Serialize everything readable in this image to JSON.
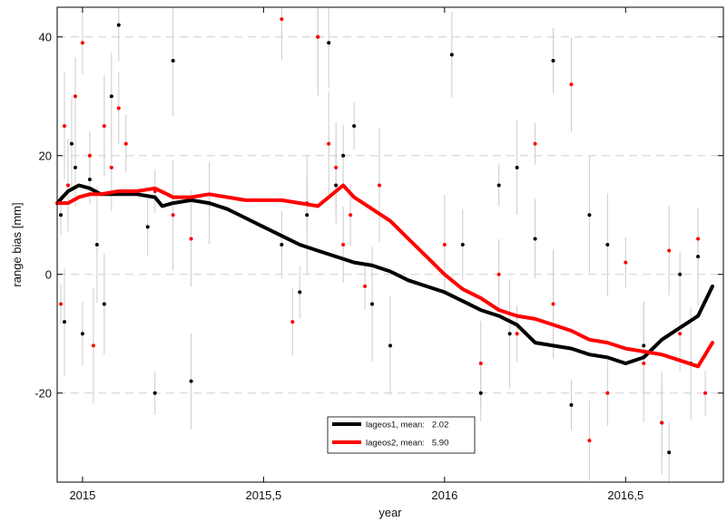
{
  "chart_data": {
    "type": "line",
    "title": "",
    "xlabel": "year",
    "ylabel": "range bias [mm]",
    "xlim": [
      2014.93,
      2016.77
    ],
    "ylim": [
      -35,
      45
    ],
    "x_ticks": [
      2015,
      2015.5,
      2016,
      2016.5
    ],
    "x_tick_labels": [
      "2015",
      "2015,5",
      "2016",
      "2016,5"
    ],
    "y_ticks": [
      -20,
      0,
      20,
      40
    ],
    "y_tick_labels": [
      "-20",
      "0",
      "20",
      "40"
    ],
    "grid": "horizontal dashed",
    "legend_position": "bottom-center",
    "colors": {
      "lageos1": "#000000",
      "lageos2": "#ff0000",
      "error_bars": "#cccccc",
      "grid": "#cfcfcf"
    },
    "series": [
      {
        "name": "lageos1, mean:   2.02",
        "color": "#000000",
        "x": [
          2014.93,
          2014.96,
          2014.99,
          2015.02,
          2015.05,
          2015.1,
          2015.15,
          2015.2,
          2015.22,
          2015.25,
          2015.3,
          2015.35,
          2015.4,
          2015.45,
          2015.5,
          2015.55,
          2015.6,
          2015.65,
          2015.7,
          2015.75,
          2015.8,
          2015.85,
          2015.9,
          2015.95,
          2016.0,
          2016.05,
          2016.1,
          2016.15,
          2016.2,
          2016.25,
          2016.3,
          2016.35,
          2016.4,
          2016.45,
          2016.5,
          2016.55,
          2016.6,
          2016.65,
          2016.7,
          2016.74
        ],
        "y": [
          12,
          14,
          15,
          14.5,
          13.5,
          13.5,
          13.5,
          13,
          11.5,
          12,
          12.5,
          12,
          11,
          9.5,
          8,
          6.5,
          5,
          4,
          3,
          2,
          1.5,
          0.5,
          -1,
          -2,
          -3,
          -4.5,
          -6,
          -7,
          -8.5,
          -11.5,
          -12,
          -12.5,
          -13.5,
          -14,
          -15,
          -14,
          -11,
          -9,
          -7,
          -2
        ]
      },
      {
        "name": "lageos2, mean:   5.90",
        "color": "#ff0000",
        "x": [
          2014.93,
          2014.96,
          2014.99,
          2015.02,
          2015.05,
          2015.1,
          2015.15,
          2015.2,
          2015.25,
          2015.3,
          2015.35,
          2015.4,
          2015.45,
          2015.5,
          2015.55,
          2015.6,
          2015.65,
          2015.7,
          2015.72,
          2015.75,
          2015.8,
          2015.85,
          2015.9,
          2015.95,
          2016.0,
          2016.05,
          2016.1,
          2016.15,
          2016.2,
          2016.25,
          2016.3,
          2016.35,
          2016.4,
          2016.45,
          2016.5,
          2016.55,
          2016.6,
          2016.65,
          2016.7,
          2016.74
        ],
        "y": [
          12,
          12,
          13,
          13.5,
          13.5,
          14,
          14,
          14.5,
          13,
          13,
          13.5,
          13,
          12.5,
          12.5,
          12.5,
          12,
          11.5,
          14,
          15,
          13,
          11,
          9,
          6,
          3,
          0,
          -2.5,
          -4,
          -6,
          -7,
          -7.5,
          -8.5,
          -9.5,
          -11,
          -11.5,
          -12.5,
          -13,
          -13.5,
          -14.5,
          -15.5,
          -11.5
        ]
      }
    ],
    "scatter": {
      "lageos1": {
        "x": [
          2014.94,
          2014.95,
          2014.97,
          2014.98,
          2015.0,
          2015.02,
          2015.04,
          2015.06,
          2015.08,
          2015.1,
          2015.18,
          2015.2,
          2015.25,
          2015.3,
          2015.35,
          2015.55,
          2015.6,
          2015.62,
          2015.65,
          2015.68,
          2015.7,
          2015.72,
          2015.75,
          2015.8,
          2015.85,
          2016.02,
          2016.05,
          2016.1,
          2016.15,
          2016.18,
          2016.2,
          2016.25,
          2016.3,
          2016.35,
          2016.4,
          2016.45,
          2016.55,
          2016.6,
          2016.62,
          2016.65,
          2016.68,
          2016.7
        ],
        "y": [
          10,
          -8,
          22,
          18,
          -10,
          16,
          5,
          -5,
          30,
          42,
          8,
          -20,
          36,
          -18,
          12,
          5,
          -3,
          10,
          40,
          39,
          15,
          20,
          25,
          -5,
          -12,
          37,
          5,
          -20,
          15,
          -10,
          18,
          6,
          36,
          -22,
          10,
          5,
          -12,
          -25,
          -30,
          0,
          -15,
          3
        ]
      },
      "lageos2": {
        "x": [
          2014.94,
          2014.95,
          2014.96,
          2014.98,
          2015.0,
          2015.02,
          2015.03,
          2015.06,
          2015.08,
          2015.1,
          2015.12,
          2015.2,
          2015.25,
          2015.3,
          2015.55,
          2015.58,
          2015.62,
          2015.65,
          2015.68,
          2015.7,
          2015.72,
          2015.74,
          2015.78,
          2015.82,
          2016.0,
          2016.1,
          2016.15,
          2016.2,
          2016.25,
          2016.3,
          2016.35,
          2016.4,
          2016.45,
          2016.5,
          2016.55,
          2016.6,
          2016.62,
          2016.65,
          2016.7,
          2016.72
        ],
        "y": [
          -5,
          25,
          15,
          30,
          39,
          20,
          -12,
          25,
          18,
          28,
          22,
          14,
          10,
          6,
          43,
          -8,
          12,
          40,
          22,
          18,
          5,
          10,
          -2,
          15,
          5,
          -15,
          0,
          -10,
          22,
          -5,
          32,
          -28,
          -20,
          2,
          -15,
          -25,
          4,
          -10,
          6,
          -20
        ]
      }
    }
  },
  "legend": {
    "lageos1_label": "lageos1, mean:   2.02",
    "lageos2_label": "lageos2, mean:   5.90"
  }
}
